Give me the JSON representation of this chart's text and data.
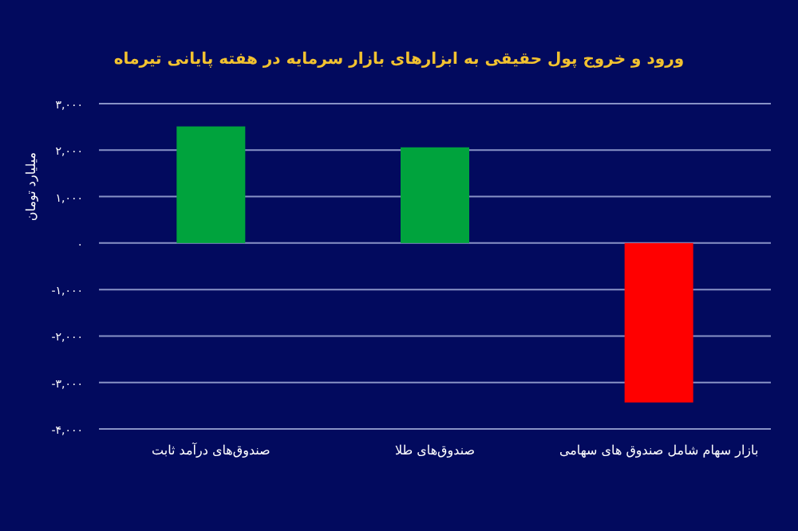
{
  "chart_data": {
    "type": "bar",
    "title": "ورود و خروج پول حقیقی به ابزارهای بازار سرمایه در هفته پایانی تیرماه",
    "ylabel": "میلیارد تومان",
    "categories": [
      "صندوق‌های درآمد ثابت",
      "صندوق‌های طلا",
      "بازار سهام شامل صندوق های سهامی"
    ],
    "values": [
      2510,
      2060,
      -3430
    ],
    "colors": [
      "#00a33d",
      "#00a33d",
      "#ff0000"
    ],
    "ylim": [
      -4000,
      3000
    ],
    "yticks": [
      {
        "value": -4000,
        "label": "-۴,۰۰۰"
      },
      {
        "value": -3000,
        "label": "-۳,۰۰۰"
      },
      {
        "value": -2000,
        "label": "-۲,۰۰۰"
      },
      {
        "value": -1000,
        "label": "-۱,۰۰۰"
      },
      {
        "value": 0,
        "label": "۰"
      },
      {
        "value": 1000,
        "label": "۱,۰۰۰"
      },
      {
        "value": 2000,
        "label": "۲,۰۰۰"
      },
      {
        "value": 3000,
        "label": "۳,۰۰۰"
      }
    ],
    "grid": "y"
  }
}
